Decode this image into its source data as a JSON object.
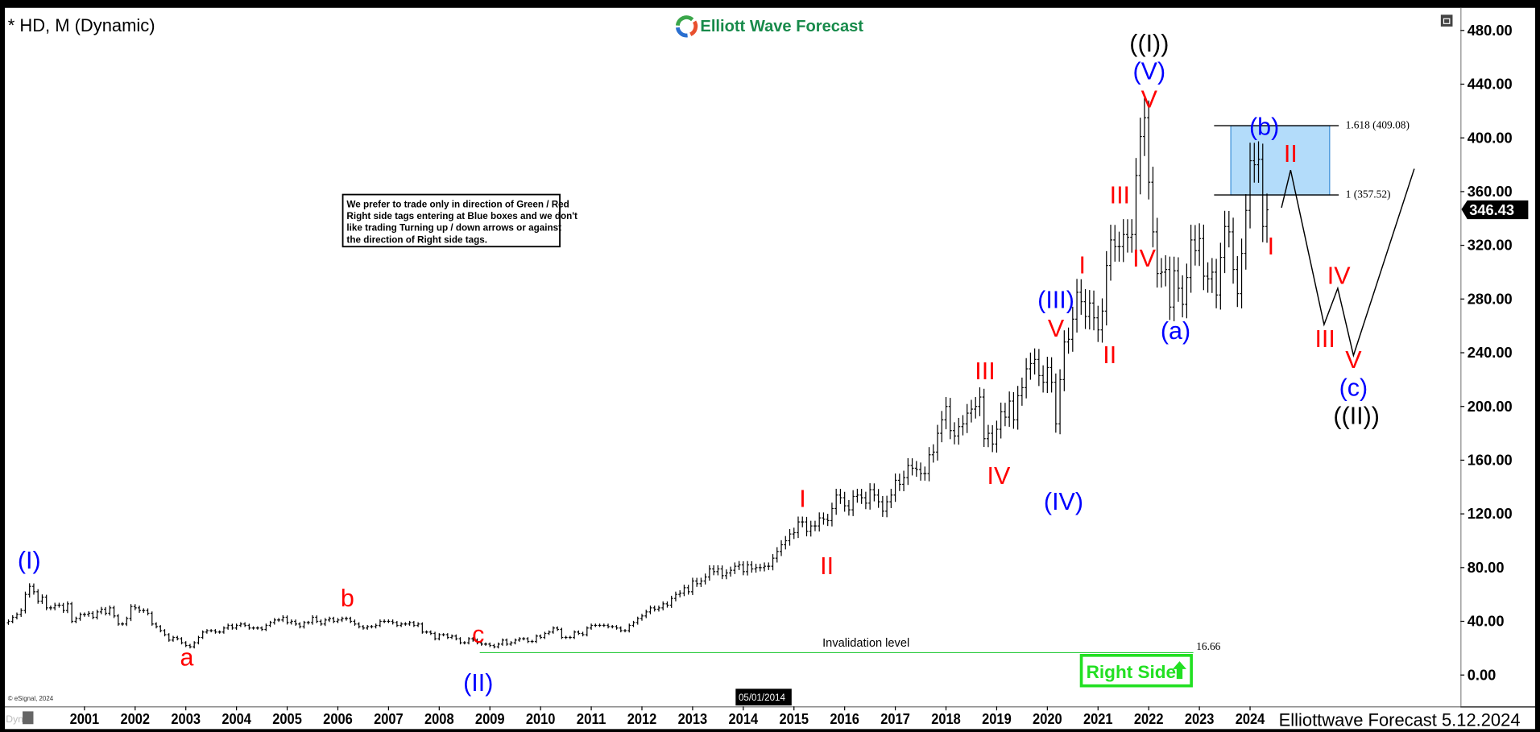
{
  "header": {
    "title": "* HD, M (Dynamic)",
    "logo_text": "Elliott Wave Forecast",
    "footer_text": "Elliottwave Forecast 5.12.2024",
    "copyright": "© eSignal, 2024",
    "dyn_label": "Dyn",
    "cursor_date": "05/01/2014"
  },
  "note": {
    "lines": [
      "We prefer to trade only in direction of Green / Red",
      "Right side tags entering at Blue boxes and we don't",
      "like trading Turning up / down arrows or against",
      "the direction of Right side tags."
    ]
  },
  "right_side_tag": {
    "label": "Right Side",
    "direction": "up",
    "color": "#22e022"
  },
  "colors": {
    "blue_label": "#0000ff",
    "red_label": "#ff0000",
    "black_label": "#000000",
    "fib_box": "#b3dcfa",
    "fib_box_border": "#3a8fd8",
    "invalidation": "#2ecc40",
    "logo_green": "#178a4a"
  },
  "chart_data": {
    "type": "ohlc-bar",
    "symbol": "HD",
    "interval": "M",
    "yaxis": {
      "min": 0,
      "max": 480,
      "ticks": [
        "0.00",
        "40.00",
        "80.00",
        "120.00",
        "160.00",
        "200.00",
        "240.00",
        "280.00",
        "320.00",
        "360.00",
        "400.00",
        "440.00",
        "480.00"
      ],
      "side": "right"
    },
    "xaxis": {
      "ticks": [
        "2001",
        "2002",
        "2003",
        "2004",
        "2005",
        "2006",
        "2007",
        "2008",
        "2009",
        "2010",
        "2011",
        "2012",
        "2013",
        "2014",
        "2015",
        "2016",
        "2017",
        "2018",
        "2019",
        "2020",
        "2021",
        "2022",
        "2023",
        "2024"
      ]
    },
    "start_month": "1999-07",
    "monthly_close": [
      40,
      43,
      45,
      48,
      60,
      66,
      62,
      55,
      58,
      50,
      50,
      52,
      52,
      48,
      53,
      40,
      42,
      45,
      45,
      46,
      43,
      47,
      49,
      46,
      50,
      44,
      38,
      38,
      42,
      51,
      50,
      48,
      48,
      46,
      38,
      36,
      33,
      30,
      26,
      28,
      27,
      24,
      22,
      21,
      24,
      28,
      32,
      33,
      33,
      32,
      32,
      35,
      37,
      35,
      37,
      38,
      37,
      35,
      35,
      35,
      34,
      37,
      39,
      41,
      41,
      43,
      39,
      40,
      38,
      36,
      39,
      39,
      43,
      40,
      38,
      41,
      42,
      40,
      41,
      42,
      42,
      40,
      38,
      36,
      35,
      36,
      36,
      37,
      40,
      40,
      40,
      39,
      37,
      38,
      38,
      39,
      37,
      38,
      32,
      32,
      31,
      27,
      30,
      30,
      28,
      29,
      27,
      24,
      24,
      27,
      26,
      24,
      23,
      23,
      22,
      21,
      23,
      26,
      23,
      24,
      26,
      27,
      27,
      25,
      25,
      29,
      28,
      31,
      32,
      35,
      34,
      28,
      28,
      28,
      32,
      31,
      30,
      35,
      37,
      37,
      37,
      37,
      36,
      36,
      35,
      33,
      33,
      37,
      39,
      42,
      44,
      47,
      50,
      49,
      50,
      53,
      52,
      57,
      60,
      61,
      65,
      62,
      70,
      68,
      70,
      73,
      79,
      77,
      79,
      74,
      76,
      78,
      81,
      82,
      77,
      82,
      79,
      80,
      80,
      81,
      81,
      87,
      92,
      97,
      100,
      105,
      106,
      114,
      114,
      107,
      111,
      111,
      117,
      116,
      115,
      124,
      134,
      132,
      126,
      123,
      133,
      134,
      132,
      128,
      138,
      134,
      129,
      122,
      129,
      134,
      145,
      142,
      147,
      156,
      154,
      153,
      150,
      150,
      164,
      166,
      180,
      190,
      200,
      182,
      178,
      185,
      187,
      195,
      198,
      200,
      207,
      176,
      180,
      172,
      183,
      196,
      192,
      204,
      190,
      208,
      214,
      228,
      232,
      235,
      223,
      218,
      229,
      218,
      187,
      220,
      248,
      250,
      265,
      285,
      278,
      267,
      277,
      266,
      257,
      271,
      305,
      324,
      319,
      319,
      328,
      326,
      328,
      372,
      401,
      415,
      367,
      330,
      299,
      300,
      302,
      274,
      301,
      288,
      276,
      296,
      324,
      316,
      325,
      297,
      295,
      300,
      283,
      311,
      334,
      330,
      302,
      284,
      314,
      346,
      383,
      380,
      384,
      334,
      346.43
    ],
    "last_price": "346.43",
    "fib_zone": {
      "start": 2023.62,
      "end": 2025.57,
      "line_start": 2023.29,
      "line_end": 2025.75,
      "upper": 409.08,
      "lower": 357.52,
      "upper_label": "1.618 (409.08)",
      "lower_label": "1 (357.52)"
    },
    "invalidation": {
      "label": "Invalidation level",
      "value": 16.66,
      "value_label": "16.66",
      "from": 2008.8,
      "to": 2022.88
    },
    "projection_path": [
      [
        2024.62,
        348
      ],
      [
        2024.8,
        376
      ],
      [
        2025.46,
        261
      ],
      [
        2025.73,
        288
      ],
      [
        2026.04,
        238
      ],
      [
        2027.24,
        377
      ]
    ],
    "wave_labels": [
      {
        "text": "(I)",
        "color": "blue",
        "date": 1999.91,
        "price": 84
      },
      {
        "text": "a",
        "color": "red",
        "date": 2003.02,
        "price": 12
      },
      {
        "text": "b",
        "color": "red",
        "date": 2006.19,
        "price": 56
      },
      {
        "text": "c",
        "color": "red",
        "date": 2008.77,
        "price": 29
      },
      {
        "text": "(II)",
        "color": "blue",
        "date": 2008.77,
        "price": -7
      },
      {
        "text": "I",
        "color": "red",
        "date": 2015.17,
        "price": 130
      },
      {
        "text": "II",
        "color": "red",
        "date": 2015.65,
        "price": 80
      },
      {
        "text": "III",
        "color": "red",
        "date": 2018.77,
        "price": 225
      },
      {
        "text": "IV",
        "color": "red",
        "date": 2019.04,
        "price": 147
      },
      {
        "text": "(III)",
        "color": "blue",
        "date": 2020.17,
        "price": 276
      },
      {
        "text": "V",
        "color": "red",
        "date": 2020.17,
        "price": 259
      },
      {
        "text": "(IV)",
        "color": "blue",
        "date": 2020.32,
        "price": 128
      },
      {
        "text": "I",
        "color": "red",
        "date": 2020.69,
        "price": 304
      },
      {
        "text": "II",
        "color": "red",
        "date": 2021.23,
        "price": 237
      },
      {
        "text": "III",
        "color": "red",
        "date": 2021.43,
        "price": 356
      },
      {
        "text": "IV",
        "color": "red",
        "date": 2021.91,
        "price": 309
      },
      {
        "text": "((I))",
        "color": "black",
        "date": 2022.01,
        "price": 468
      },
      {
        "text": "(V)",
        "color": "blue",
        "date": 2022.01,
        "price": 447
      },
      {
        "text": "V",
        "color": "red",
        "date": 2022.01,
        "price": 430
      },
      {
        "text": "(a)",
        "color": "blue",
        "date": 2022.53,
        "price": 255
      },
      {
        "text": "(b)",
        "color": "blue",
        "date": 2024.28,
        "price": 407
      },
      {
        "text": "II",
        "color": "red",
        "date": 2024.8,
        "price": 387
      },
      {
        "text": "I",
        "color": "red",
        "date": 2024.41,
        "price": 318
      },
      {
        "text": "IV",
        "color": "red",
        "date": 2025.75,
        "price": 296
      },
      {
        "text": "III",
        "color": "red",
        "date": 2025.48,
        "price": 249
      },
      {
        "text": "V",
        "color": "red",
        "date": 2026.04,
        "price": 230
      },
      {
        "text": "(c)",
        "color": "blue",
        "date": 2026.04,
        "price": 213
      },
      {
        "text": "((II))",
        "color": "black",
        "date": 2026.1,
        "price": 195
      }
    ]
  }
}
